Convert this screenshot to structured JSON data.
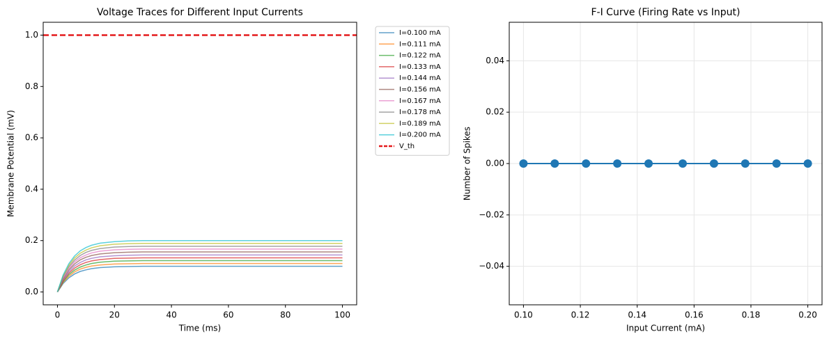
{
  "chart_data": [
    {
      "type": "line",
      "title": "Voltage Traces for Different Input Currents",
      "xlabel": "Time (ms)",
      "ylabel": "Membrane Potential (mV)",
      "x": [
        0,
        2,
        4,
        6,
        8,
        10,
        12,
        15,
        20,
        25,
        30,
        40,
        50,
        60,
        70,
        80,
        90,
        100
      ],
      "series": [
        {
          "name": "I=0.100 mA",
          "color": "#1f77b4",
          "values": [
            0,
            0.033,
            0.055,
            0.07,
            0.08,
            0.086,
            0.091,
            0.095,
            0.098,
            0.099,
            0.1,
            0.1,
            0.1,
            0.1,
            0.1,
            0.1,
            0.1,
            0.1
          ]
        },
        {
          "name": "I=0.111 mA",
          "color": "#ff7f0e",
          "values": [
            0,
            0.037,
            0.061,
            0.078,
            0.089,
            0.096,
            0.101,
            0.105,
            0.109,
            0.11,
            0.111,
            0.111,
            0.111,
            0.111,
            0.111,
            0.111,
            0.111,
            0.111
          ]
        },
        {
          "name": "I=0.122 mA",
          "color": "#2ca02c",
          "values": [
            0,
            0.04,
            0.067,
            0.085,
            0.097,
            0.105,
            0.111,
            0.116,
            0.12,
            0.121,
            0.122,
            0.122,
            0.122,
            0.122,
            0.122,
            0.122,
            0.122,
            0.122
          ]
        },
        {
          "name": "I=0.133 mA",
          "color": "#d62728",
          "values": [
            0,
            0.044,
            0.073,
            0.093,
            0.106,
            0.115,
            0.121,
            0.126,
            0.131,
            0.132,
            0.133,
            0.133,
            0.133,
            0.133,
            0.133,
            0.133,
            0.133,
            0.133
          ]
        },
        {
          "name": "I=0.144 mA",
          "color": "#9467bd",
          "values": [
            0,
            0.047,
            0.079,
            0.101,
            0.115,
            0.125,
            0.131,
            0.137,
            0.141,
            0.143,
            0.144,
            0.144,
            0.144,
            0.144,
            0.144,
            0.144,
            0.144,
            0.144
          ]
        },
        {
          "name": "I=0.156 mA",
          "color": "#8c564b",
          "values": [
            0,
            0.051,
            0.086,
            0.109,
            0.125,
            0.135,
            0.142,
            0.148,
            0.153,
            0.155,
            0.156,
            0.156,
            0.156,
            0.156,
            0.156,
            0.156,
            0.156,
            0.156
          ]
        },
        {
          "name": "I=0.167 mA",
          "color": "#e377c2",
          "values": [
            0,
            0.055,
            0.092,
            0.117,
            0.133,
            0.144,
            0.152,
            0.159,
            0.164,
            0.166,
            0.167,
            0.167,
            0.167,
            0.167,
            0.167,
            0.167,
            0.167,
            0.167
          ]
        },
        {
          "name": "I=0.178 mA",
          "color": "#7f7f7f",
          "values": [
            0,
            0.059,
            0.098,
            0.124,
            0.142,
            0.154,
            0.162,
            0.169,
            0.175,
            0.177,
            0.178,
            0.178,
            0.178,
            0.178,
            0.178,
            0.178,
            0.178,
            0.178
          ]
        },
        {
          "name": "I=0.189 mA",
          "color": "#bcbd22",
          "values": [
            0,
            0.062,
            0.104,
            0.132,
            0.151,
            0.163,
            0.172,
            0.18,
            0.186,
            0.188,
            0.189,
            0.189,
            0.189,
            0.189,
            0.189,
            0.189,
            0.189,
            0.189
          ]
        },
        {
          "name": "I=0.200 mA",
          "color": "#17becf",
          "values": [
            0,
            0.066,
            0.11,
            0.14,
            0.16,
            0.173,
            0.182,
            0.19,
            0.196,
            0.199,
            0.2,
            0.2,
            0.2,
            0.2,
            0.2,
            0.2,
            0.2,
            0.2
          ]
        }
      ],
      "hlines": [
        {
          "name": "V_th",
          "value": 1.0,
          "color": "#e41a1c"
        }
      ],
      "xlim": [
        -5,
        105
      ],
      "xticks": [
        0,
        20,
        40,
        60,
        80,
        100
      ],
      "ylim": [
        -0.05,
        1.05
      ],
      "yticks": [
        {
          "value": 0,
          "label": "0.0"
        },
        0.2,
        0.4,
        0.6,
        0.8,
        {
          "value": 1,
          "label": "1.0"
        }
      ],
      "grid": false,
      "legend": "outside right"
    },
    {
      "type": "line",
      "title": "F-I Curve (Firing Rate vs Input)",
      "xlabel": "Input Current (mA)",
      "ylabel": "Number of Spikes",
      "x": [
        0.1,
        0.111,
        0.122,
        0.133,
        0.144,
        0.156,
        0.167,
        0.178,
        0.189,
        0.2
      ],
      "series": [
        {
          "color": "#1f77b4",
          "values": [
            0,
            0,
            0,
            0,
            0,
            0,
            0,
            0,
            0,
            0
          ]
        }
      ],
      "markers": true,
      "xlim": [
        0.095,
        0.205
      ],
      "xticks": [
        {
          "value": 0.1,
          "label": "0.10"
        },
        0.12,
        0.14,
        0.16,
        0.18,
        {
          "value": 0.2,
          "label": "0.20"
        }
      ],
      "ylim": [
        -0.055,
        0.055
      ],
      "yticks": [
        {
          "value": -0.04,
          "label": "−0.04"
        },
        {
          "value": -0.02,
          "label": "−0.02"
        },
        {
          "value": 0,
          "label": "0.00"
        },
        0.02,
        0.04
      ],
      "grid": true
    }
  ]
}
